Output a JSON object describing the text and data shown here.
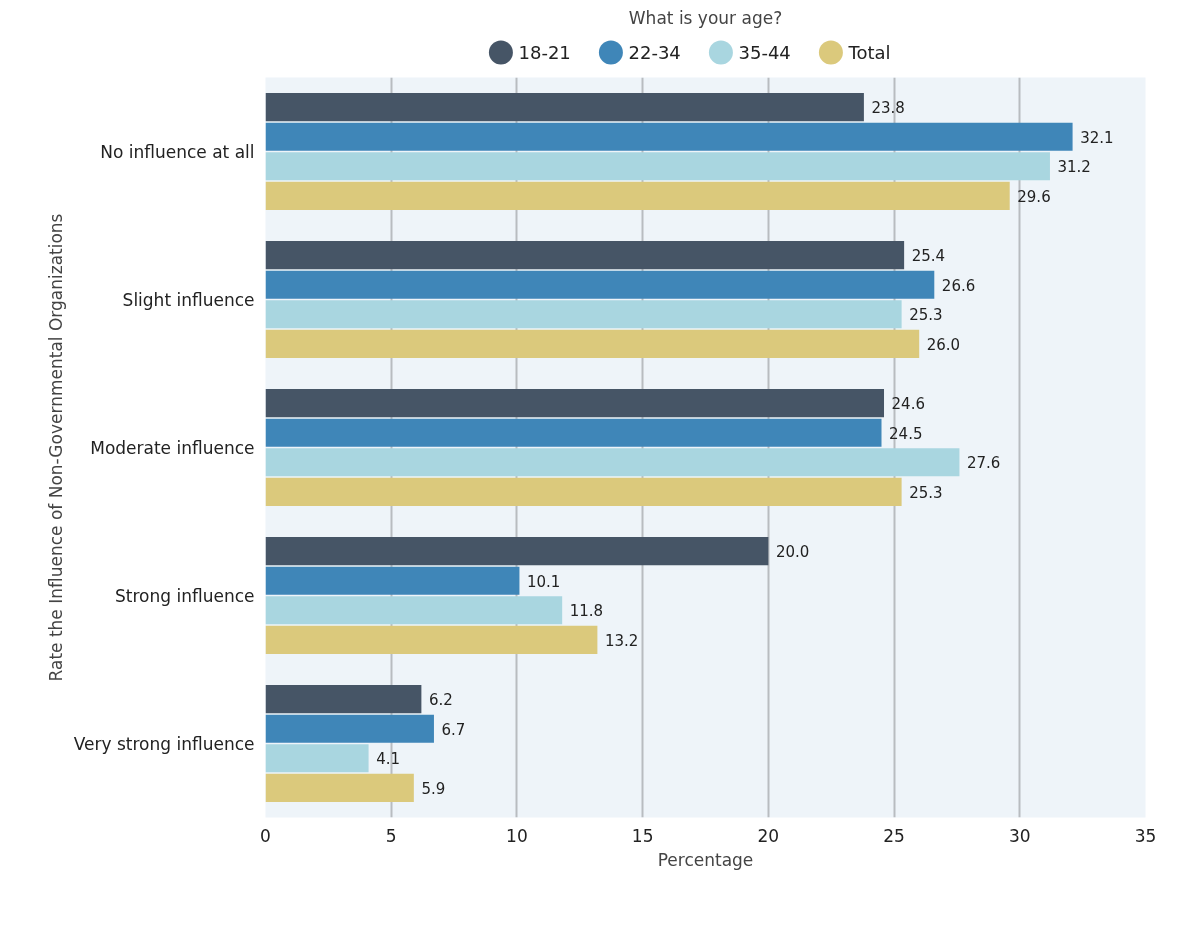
{
  "chart_data": {
    "type": "bar",
    "orientation": "horizontal",
    "xlabel": "Percentage",
    "ylabel": "Rate the Influence of Non-Governmental Organizations",
    "legend_title": "What is your age?",
    "categories": [
      "No influence at all",
      "Slight influence",
      "Moderate influence",
      "Strong influence",
      "Very strong influence"
    ],
    "series": [
      {
        "name": "18-21",
        "color": "#465566",
        "values": [
          23.8,
          25.4,
          24.6,
          20.0,
          6.2
        ],
        "value_labels": [
          "23.8",
          "25.4",
          "24.6",
          "20.0",
          "6.2"
        ]
      },
      {
        "name": "22-34",
        "color": "#3f86b8",
        "values": [
          32.1,
          26.6,
          24.5,
          10.1,
          6.7
        ],
        "value_labels": [
          "32.1",
          "26.6",
          "24.5",
          "10.1",
          "6.7"
        ]
      },
      {
        "name": "35-44",
        "color": "#a9d6e0",
        "values": [
          31.2,
          25.3,
          27.6,
          11.8,
          4.1
        ],
        "value_labels": [
          "31.2",
          "25.3",
          "27.6",
          "11.8",
          "4.1"
        ]
      },
      {
        "name": "Total",
        "color": "#dbc97c",
        "values": [
          29.6,
          26.0,
          25.3,
          13.2,
          5.9
        ],
        "value_labels": [
          "29.6",
          "26.0",
          "25.3",
          "13.2",
          "5.9"
        ]
      }
    ],
    "xlim": [
      0,
      35
    ],
    "xticks": [
      0,
      5,
      10,
      15,
      20,
      25,
      30,
      35
    ],
    "grid": "x",
    "legend": "top"
  }
}
